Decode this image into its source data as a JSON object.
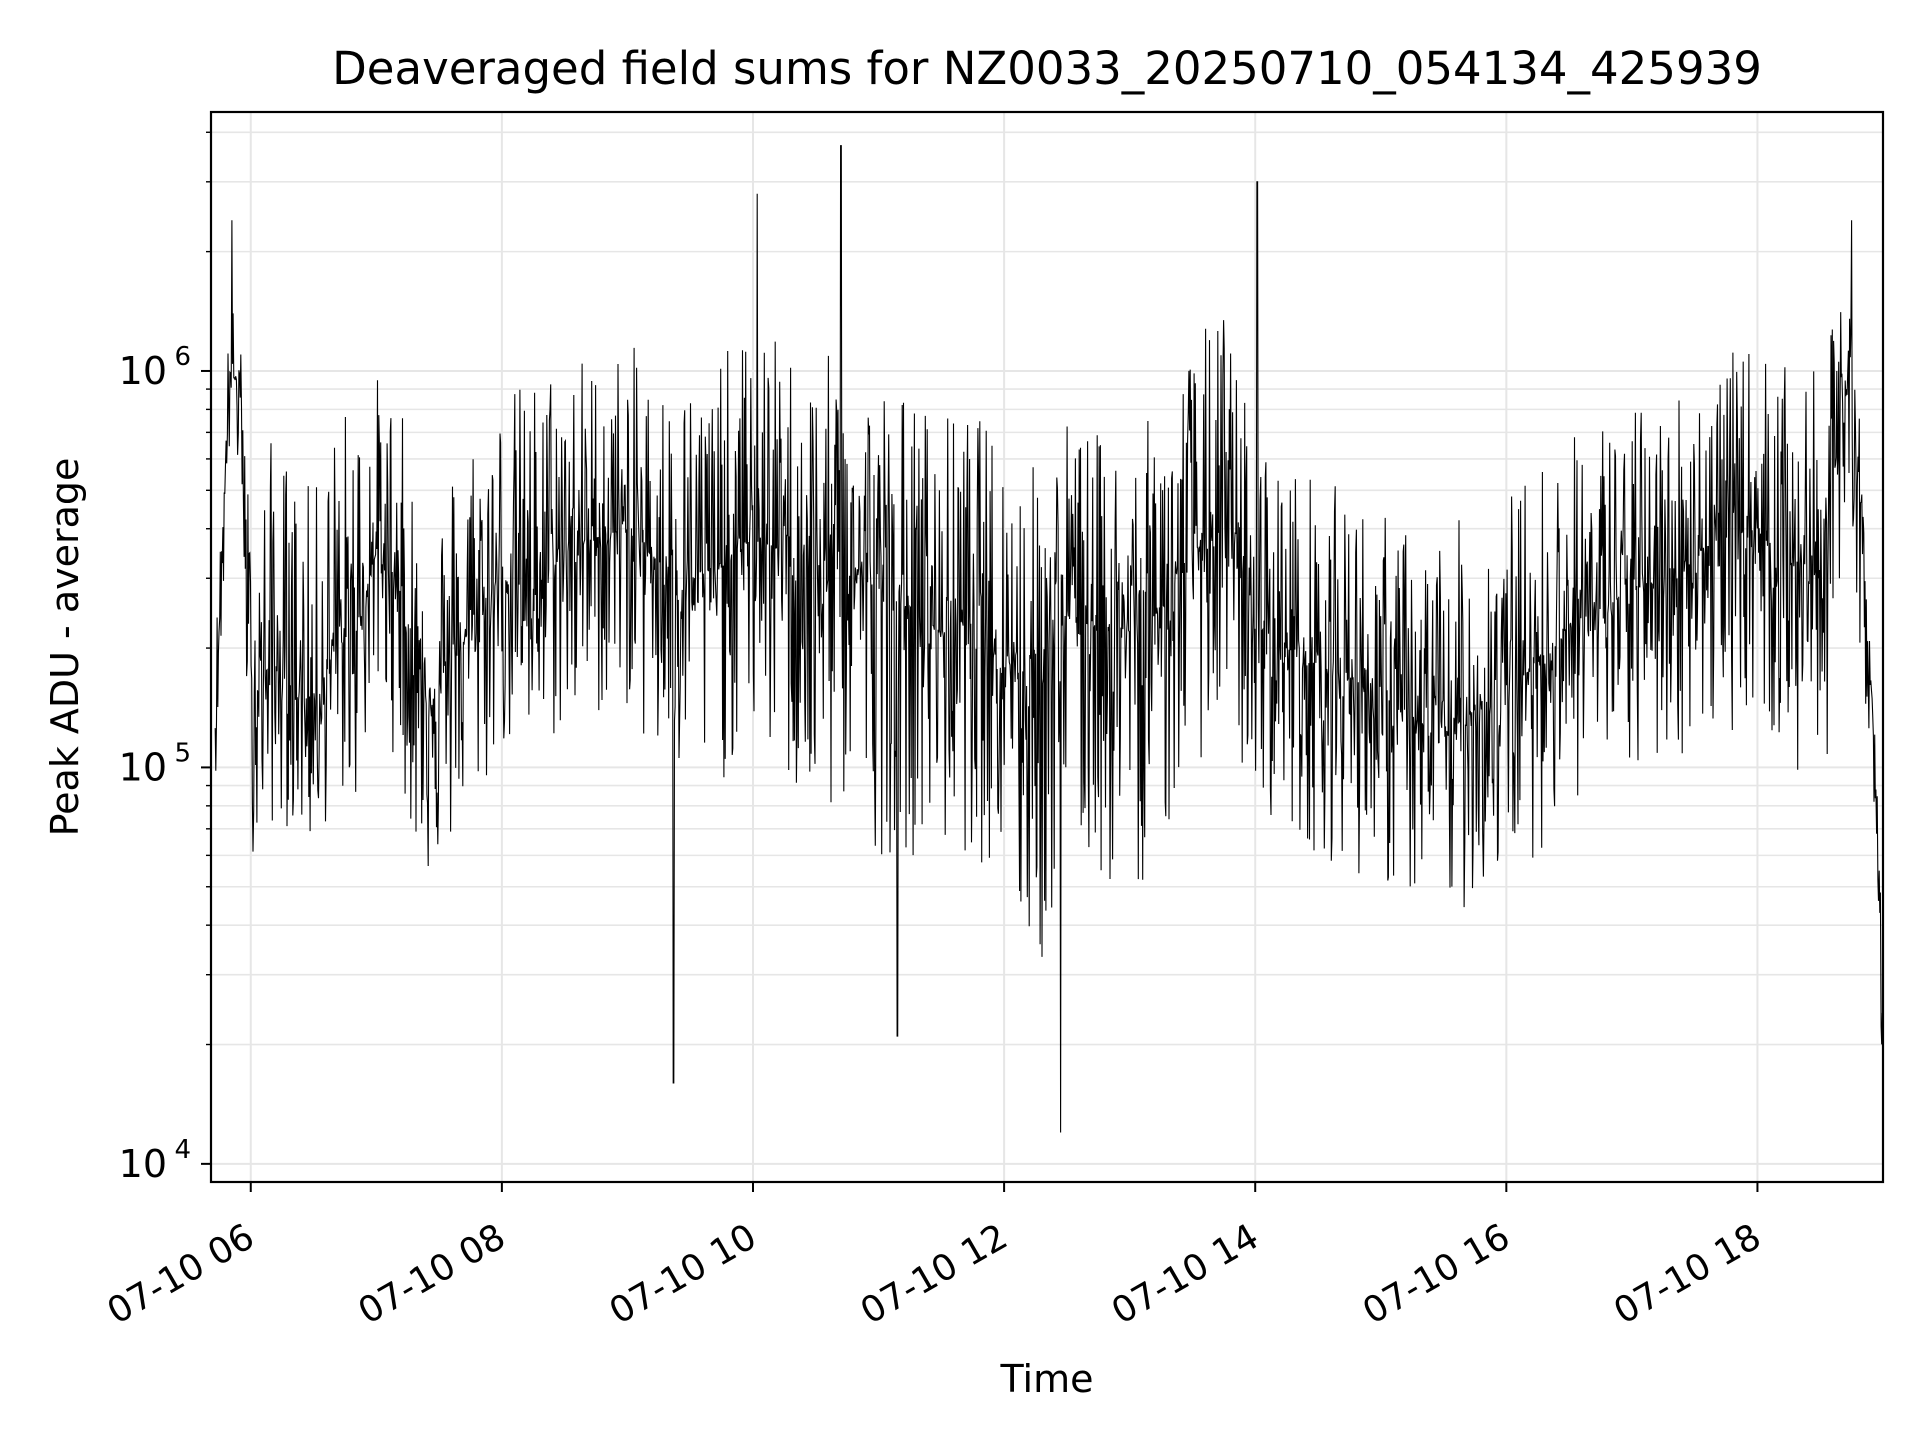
{
  "chart_data": {
    "type": "line",
    "title": "Deaveraged field sums for NZ0033_20250710_054134_425939",
    "xlabel": "Time",
    "ylabel": "Peak ADU - average",
    "y_scale": "log",
    "ylim": [
      9000,
      4500000
    ],
    "xlim": [
      "2025-07-10 05:41",
      "2025-07-10 19:00"
    ],
    "x_ticks": [
      "07-10 06",
      "07-10 08",
      "07-10 10",
      "07-10 12",
      "07-10 14",
      "07-10 16",
      "07-10 18"
    ],
    "y_ticks": [
      {
        "base": "10",
        "exp": "4",
        "value": 10000
      },
      {
        "base": "10",
        "exp": "5",
        "value": 100000
      },
      {
        "base": "10",
        "exp": "6",
        "value": 1000000
      }
    ],
    "grid": true,
    "line_color": "#000000",
    "series": [
      {
        "x": [
          "2025-07-10 05:43",
          "2025-07-10 05:50",
          "2025-07-10 05:55",
          "2025-07-10 06:00",
          "2025-07-10 06:10",
          "2025-07-10 06:20",
          "2025-07-10 06:30",
          "2025-07-10 06:40",
          "2025-07-10 06:50",
          "2025-07-10 07:00",
          "2025-07-10 07:10",
          "2025-07-10 07:20",
          "2025-07-10 07:30",
          "2025-07-10 07:40",
          "2025-07-10 07:50",
          "2025-07-10 08:00",
          "2025-07-10 08:15",
          "2025-07-10 08:30",
          "2025-07-10 08:45",
          "2025-07-10 09:00",
          "2025-07-10 09:15",
          "2025-07-10 09:30",
          "2025-07-10 09:45",
          "2025-07-10 10:00",
          "2025-07-10 10:15",
          "2025-07-10 10:30",
          "2025-07-10 10:45",
          "2025-07-10 11:00",
          "2025-07-10 11:15",
          "2025-07-10 11:30",
          "2025-07-10 11:45",
          "2025-07-10 12:00",
          "2025-07-10 12:15",
          "2025-07-10 12:30",
          "2025-07-10 12:45",
          "2025-07-10 13:00",
          "2025-07-10 13:15",
          "2025-07-10 13:30",
          "2025-07-10 13:45",
          "2025-07-10 14:00",
          "2025-07-10 14:15",
          "2025-07-10 14:30",
          "2025-07-10 14:45",
          "2025-07-10 15:00",
          "2025-07-10 15:15",
          "2025-07-10 15:30",
          "2025-07-10 15:45",
          "2025-07-10 16:00",
          "2025-07-10 16:15",
          "2025-07-10 16:30",
          "2025-07-10 16:45",
          "2025-07-10 17:00",
          "2025-07-10 17:15",
          "2025-07-10 17:30",
          "2025-07-10 17:45",
          "2025-07-10 18:00",
          "2025-07-10 18:15",
          "2025-07-10 18:30",
          "2025-07-10 18:45",
          "2025-07-10 18:55",
          "2025-07-10 19:00"
        ],
        "y": [
          130000,
          1000000,
          900000,
          150000,
          180000,
          160000,
          140000,
          200000,
          220000,
          350000,
          300000,
          150000,
          160000,
          200000,
          250000,
          300000,
          280000,
          350000,
          380000,
          400000,
          330000,
          300000,
          320000,
          380000,
          350000,
          300000,
          330000,
          280000,
          250000,
          220000,
          240000,
          200000,
          150000,
          250000,
          230000,
          220000,
          250000,
          350000,
          400000,
          230000,
          200000,
          180000,
          170000,
          150000,
          130000,
          120000,
          140000,
          160000,
          180000,
          230000,
          250000,
          280000,
          300000,
          350000,
          380000,
          400000,
          330000,
          320000,
          1100000,
          140000,
          20000
        ],
        "low_envelope": [
          90000,
          600000,
          500000,
          60000,
          70000,
          70000,
          60000,
          80000,
          80000,
          150000,
          100000,
          55000,
          50000,
          70000,
          80000,
          110000,
          100000,
          120000,
          130000,
          140000,
          90000,
          80000,
          90000,
          120000,
          90000,
          60000,
          80000,
          60000,
          60000,
          60000,
          60000,
          50000,
          25000,
          60000,
          50000,
          45000,
          60000,
          100000,
          120000,
          80000,
          70000,
          60000,
          55000,
          50000,
          45000,
          40000,
          45000,
          55000,
          60000,
          80000,
          90000,
          90000,
          100000,
          110000,
          120000,
          140000,
          90000,
          80000,
          300000,
          100000,
          15000
        ],
        "high_envelope": [
          200000,
          1600000,
          1200000,
          400000,
          700000,
          600000,
          500000,
          800000,
          900000,
          1000000,
          900000,
          500000,
          500000,
          700000,
          800000,
          900000,
          1000000,
          1200000,
          1100000,
          1200000,
          1000000,
          1000000,
          1100000,
          1300000,
          1200000,
          1100000,
          1100000,
          1000000,
          900000,
          800000,
          800000,
          700000,
          600000,
          800000,
          700000,
          700000,
          800000,
          1200000,
          1500000,
          700000,
          600000,
          550000,
          500000,
          450000,
          400000,
          400000,
          450000,
          500000,
          600000,
          700000,
          800000,
          800000,
          900000,
          1000000,
          1100000,
          1200000,
          1000000,
          1000000,
          2000000,
          150000,
          60000
        ],
        "spikes": [
          {
            "x": "2025-07-10 05:51",
            "y": 2400000
          },
          {
            "x": "2025-07-10 09:22",
            "y": 16000
          },
          {
            "x": "2025-07-10 10:02",
            "y": 2800000
          },
          {
            "x": "2025-07-10 10:42",
            "y": 3700000
          },
          {
            "x": "2025-07-10 11:09",
            "y": 21000
          },
          {
            "x": "2025-07-10 12:27",
            "y": 12000
          },
          {
            "x": "2025-07-10 14:01",
            "y": 3000000
          },
          {
            "x": "2025-07-10 18:45",
            "y": 2400000
          }
        ]
      }
    ]
  }
}
